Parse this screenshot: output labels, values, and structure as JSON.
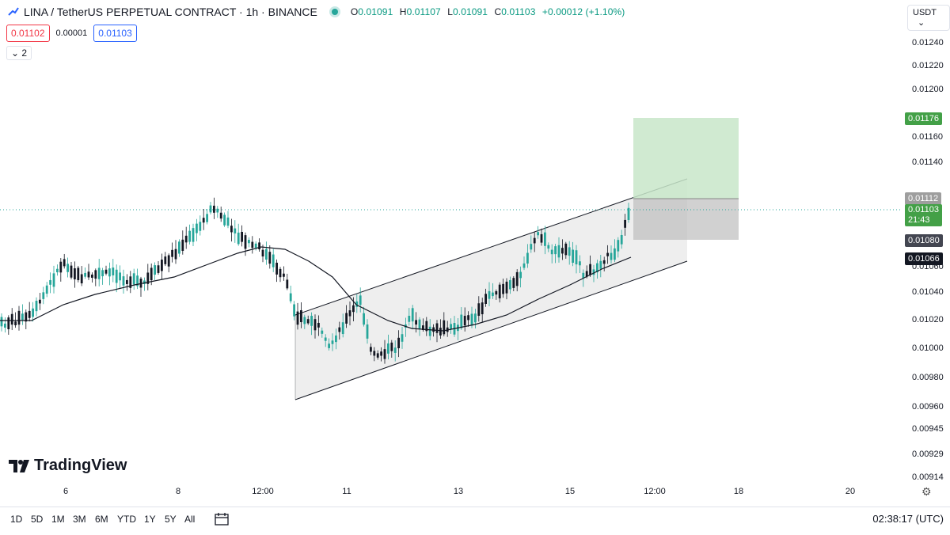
{
  "header": {
    "symbol_title": "LINA / TetherUS PERPETUAL CONTRACT · 1h · BINANCE",
    "ohlc": {
      "o_label": "O",
      "o": "0.01091",
      "h_label": "H",
      "h": "0.01107",
      "l_label": "L",
      "l": "0.01091",
      "c_label": "C",
      "c": "0.01103",
      "change": "+0.00012 (+1.10%)"
    },
    "sell_price": "0.01102",
    "spread": "0.00001",
    "buy_price": "0.01103",
    "indicators_count": "2",
    "currency_selector": "USDT"
  },
  "price_axis": {
    "ticks": [
      "0.01240",
      "0.01220",
      "0.01200",
      "0.01160",
      "0.01140",
      "0.01060",
      "0.01040",
      "0.01020",
      "0.01000",
      "0.00980",
      "0.00960",
      "0.00945",
      "0.00929",
      "0.00914"
    ],
    "labels": {
      "target": "0.01176",
      "entry": "0.01112",
      "current": "0.01103",
      "countdown": "21:43",
      "stop": "0.01080",
      "ma": "0.01066"
    }
  },
  "time_axis": {
    "ticks": [
      "6",
      "8",
      "12:00",
      "11",
      "13",
      "15",
      "12:00",
      "18",
      "20"
    ]
  },
  "bottom_bar": {
    "ranges": [
      "1D",
      "5D",
      "1M",
      "3M",
      "6M",
      "YTD",
      "1Y",
      "5Y",
      "All"
    ],
    "clock": "02:38:17 (UTC)"
  },
  "branding": {
    "logo_text": "TradingView"
  },
  "colors": {
    "up": "#089981",
    "down": "#f23645",
    "bull_candle": "#26a69a",
    "bear_candle": "#131722",
    "target_zone": "#c8e6c9",
    "stop_zone": "#bdbdbd",
    "channel_fill": "#ebebeb"
  },
  "icons": [
    "chart-line-icon",
    "chevron-down-icon",
    "calendar-range-icon",
    "settings-gear-icon"
  ]
}
